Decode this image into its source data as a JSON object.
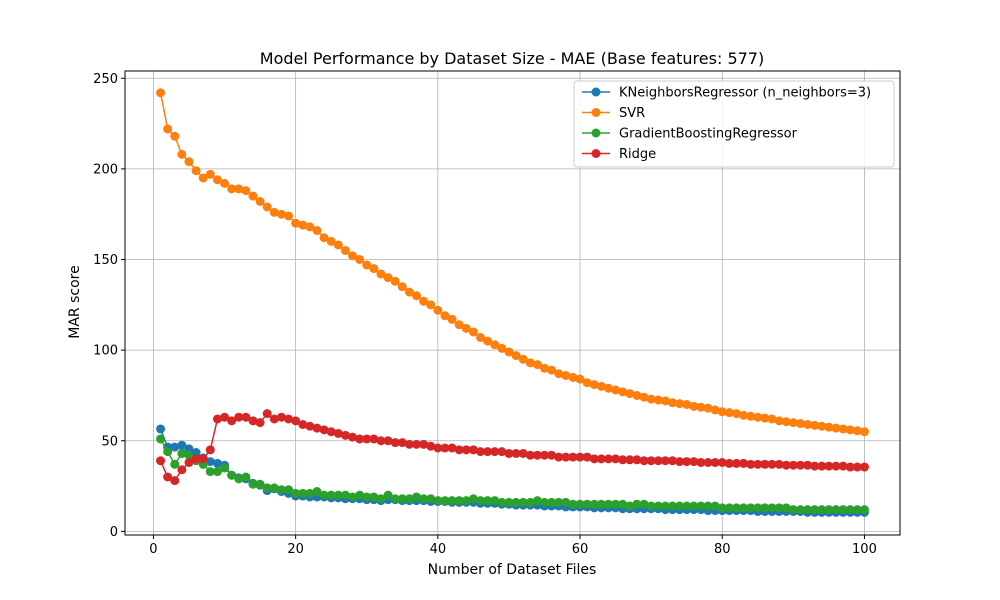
{
  "chart_data": {
    "type": "line",
    "title": "Model Performance by Dataset Size - MAE (Base features: 577)",
    "xlabel": "Number of Dataset Files",
    "ylabel": "MAR score",
    "xlim": [
      -4,
      105
    ],
    "ylim": [
      -2,
      254
    ],
    "xticks": [
      0,
      20,
      40,
      60,
      80,
      100
    ],
    "yticks": [
      0,
      50,
      100,
      150,
      200,
      250
    ],
    "grid": true,
    "legend_position": "top-right",
    "x": [
      1,
      2,
      3,
      4,
      5,
      6,
      7,
      8,
      9,
      10,
      11,
      12,
      13,
      14,
      15,
      16,
      17,
      18,
      19,
      20,
      21,
      22,
      23,
      24,
      25,
      26,
      27,
      28,
      29,
      30,
      31,
      32,
      33,
      34,
      35,
      36,
      37,
      38,
      39,
      40,
      41,
      42,
      43,
      44,
      45,
      46,
      47,
      48,
      49,
      50,
      51,
      52,
      53,
      54,
      55,
      56,
      57,
      58,
      59,
      60,
      61,
      62,
      63,
      64,
      65,
      66,
      67,
      68,
      69,
      70,
      71,
      72,
      73,
      74,
      75,
      76,
      77,
      78,
      79,
      80,
      81,
      82,
      83,
      84,
      85,
      86,
      87,
      88,
      89,
      90,
      91,
      92,
      93,
      94,
      95,
      96,
      97,
      98,
      99,
      100
    ],
    "series": [
      {
        "name": "KNeighborsRegressor (n_neighbors=3)",
        "color": "#1f77b4",
        "values": [
          56.5,
          46.5,
          46.5,
          47.5,
          45.5,
          43.5,
          40.5,
          38.5,
          37.5,
          36.5,
          31.0,
          29.5,
          29.0,
          26.5,
          25.5,
          22.5,
          23.5,
          22.0,
          21.0,
          19.5,
          19.5,
          19.0,
          19.0,
          19.0,
          18.5,
          18.5,
          18.0,
          18.0,
          18.0,
          17.5,
          17.5,
          17.0,
          17.5,
          17.5,
          17.0,
          17.0,
          17.0,
          17.0,
          16.5,
          16.5,
          16.5,
          16.0,
          16.0,
          16.0,
          16.0,
          15.5,
          15.5,
          15.5,
          15.0,
          15.0,
          14.5,
          14.5,
          14.5,
          14.5,
          14.0,
          14.0,
          14.0,
          13.5,
          13.5,
          13.5,
          13.5,
          13.0,
          13.0,
          13.0,
          13.0,
          12.5,
          12.5,
          12.5,
          12.5,
          12.5,
          12.5,
          12.0,
          12.0,
          12.0,
          12.0,
          12.0,
          12.0,
          11.5,
          11.5,
          11.5,
          11.5,
          11.5,
          11.5,
          11.5,
          11.0,
          11.0,
          11.0,
          11.0,
          11.0,
          11.0,
          11.0,
          10.5,
          10.5,
          10.5,
          10.5,
          10.5,
          10.5,
          10.5,
          10.5,
          10.5
        ]
      },
      {
        "name": "SVR",
        "color": "#ff7f0e",
        "values": [
          242,
          222,
          218,
          208,
          204,
          199,
          195,
          197,
          194,
          192,
          189,
          189,
          188,
          185,
          182,
          179,
          176,
          175,
          174,
          170,
          169,
          168,
          166,
          162,
          160,
          158,
          155,
          152,
          150,
          147,
          145,
          142,
          140,
          138,
          135,
          132,
          130,
          127,
          125,
          122,
          119,
          117,
          114,
          112,
          110,
          107,
          105,
          103,
          101,
          99,
          97,
          95,
          93,
          92,
          90,
          89,
          87,
          86,
          85,
          84,
          82,
          81,
          80,
          79,
          78,
          77,
          76,
          75,
          74,
          73,
          72.5,
          72,
          71,
          70.5,
          70,
          69,
          68.5,
          68,
          67,
          66,
          65.5,
          65,
          64,
          63.5,
          63,
          62.5,
          62,
          61,
          60.5,
          60,
          59.5,
          59,
          58.5,
          58,
          57.5,
          57,
          56.5,
          56,
          55.5,
          55
        ]
      },
      {
        "name": "GradientBoostingRegressor",
        "color": "#2ca02c",
        "values": [
          51,
          44,
          37,
          43,
          42,
          39,
          37,
          33,
          33,
          35,
          31,
          29,
          30,
          26,
          26,
          24,
          24,
          23,
          23,
          21,
          21,
          21,
          22,
          20,
          20,
          20,
          20,
          19,
          20,
          19,
          19,
          18,
          20,
          18,
          18,
          18,
          19,
          18,
          18,
          17,
          17,
          17,
          17,
          17,
          18,
          17,
          17,
          17,
          16,
          16,
          16,
          16,
          16,
          17,
          16,
          16,
          16,
          16,
          15,
          15,
          15,
          15,
          15,
          15,
          15,
          15,
          14,
          15,
          15,
          14,
          14,
          14,
          14,
          14,
          14,
          14,
          14,
          14,
          14,
          13,
          13,
          13,
          13,
          13,
          13,
          13,
          13,
          13,
          13,
          12,
          12,
          12,
          12,
          12,
          12,
          12,
          12,
          12,
          12,
          12
        ]
      },
      {
        "name": "Ridge",
        "color": "#d62728",
        "values": [
          39,
          30,
          28,
          34,
          38,
          40,
          40,
          45,
          62,
          63,
          61,
          63,
          63,
          61,
          60,
          65,
          62,
          63,
          62,
          61,
          59,
          58,
          57,
          56,
          55,
          54,
          53,
          52,
          51,
          51,
          51,
          50,
          50,
          49,
          49,
          48,
          48,
          48,
          47,
          46,
          46,
          46,
          45,
          45,
          45,
          44,
          44,
          44,
          44,
          43,
          43,
          43,
          42,
          42,
          42,
          42,
          41,
          41,
          41,
          41,
          41,
          40,
          40,
          40,
          40,
          39.5,
          39.5,
          39.5,
          39,
          39,
          39,
          39,
          39,
          38.5,
          38.5,
          38.5,
          38,
          38,
          38,
          38,
          37.5,
          37.5,
          37.5,
          37,
          37,
          37,
          37,
          37,
          36.5,
          36.5,
          36.5,
          36.5,
          36,
          36,
          36,
          36,
          36,
          35.5,
          35.5,
          35.5
        ]
      }
    ]
  }
}
